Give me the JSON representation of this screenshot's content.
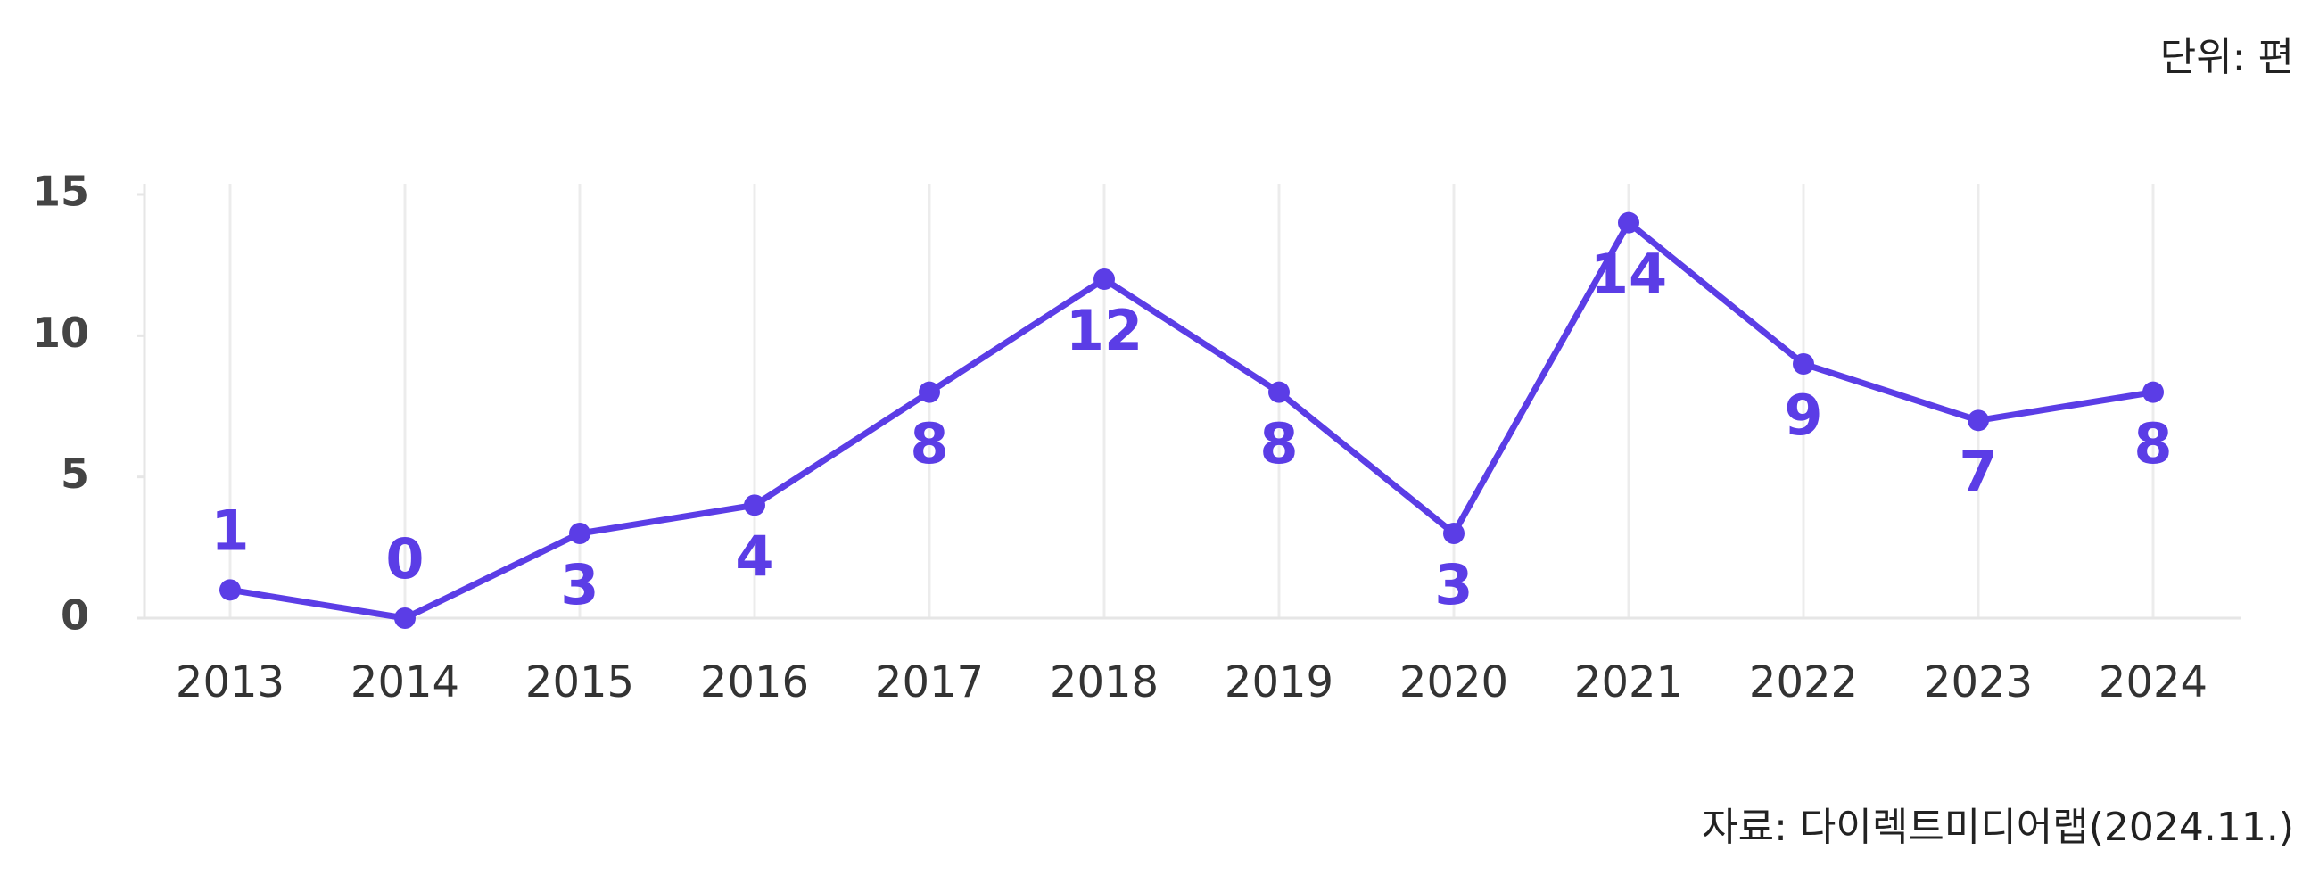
{
  "chart_data": {
    "type": "line",
    "unit_note": "단위: 편",
    "source": "자료: 다이렉트미디어랩(2024.11.)",
    "categories": [
      "2013",
      "2014",
      "2015",
      "2016",
      "2017",
      "2018",
      "2019",
      "2020",
      "2021",
      "2022",
      "2023",
      "2024"
    ],
    "values": [
      1,
      0,
      3,
      4,
      8,
      12,
      8,
      3,
      14,
      9,
      7,
      8
    ],
    "color": "#5b3de6",
    "ylim": [
      0,
      15
    ],
    "yticks": [
      0,
      5,
      10,
      15
    ],
    "grid": true
  }
}
